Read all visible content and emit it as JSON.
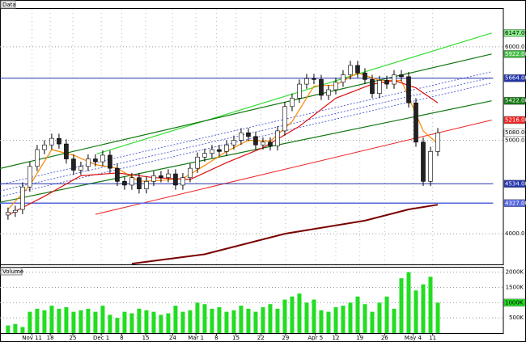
{
  "chart_data": [
    {
      "type": "candlestick",
      "title": "Data",
      "xlim": [
        -1.1,
        68
      ],
      "ylim": [
        3672,
        6405
      ],
      "yticks": [
        {
          "value": 4000,
          "label": "4000.00"
        },
        {
          "value": 5000,
          "label": "5000.00"
        },
        {
          "value": 6000,
          "label": "6000.00"
        }
      ],
      "xticks": [
        {
          "value": 3.3,
          "label": "Nov 11"
        },
        {
          "value": 5.8,
          "label": "18"
        },
        {
          "value": 8.9,
          "label": "25"
        },
        {
          "value": 12.8,
          "label": "Dec 1"
        },
        {
          "value": 15.6,
          "label": "8"
        },
        {
          "value": 18.9,
          "label": "15"
        },
        {
          "value": 22.6,
          "label": "24"
        },
        {
          "value": 25.8,
          "label": "Mar 1"
        },
        {
          "value": 28.6,
          "label": "8"
        },
        {
          "value": 31.3,
          "label": "15"
        },
        {
          "value": 34.7,
          "label": "22"
        },
        {
          "value": 38.1,
          "label": "29"
        },
        {
          "value": 42.2,
          "label": "Apr 5"
        },
        {
          "value": 45,
          "label": "12"
        },
        {
          "value": 48.3,
          "label": "19"
        },
        {
          "value": 51.7,
          "label": "26"
        },
        {
          "value": 55.6,
          "label": "May 4"
        },
        {
          "value": 58.3,
          "label": "11"
        }
      ],
      "grid": true,
      "up_color": "#ffffff",
      "down_color": "#222222",
      "open": [
        4200,
        4230,
        4260,
        4500,
        4720,
        4900,
        4950,
        5020,
        4960,
        4800,
        4680,
        4720,
        4800,
        4770,
        4840,
        4700,
        4560,
        4520,
        4600,
        4480,
        4560,
        4620,
        4600,
        4640,
        4520,
        4600,
        4700,
        4820,
        4860,
        4900,
        4880,
        4950,
        5000,
        5080,
        5040,
        4950,
        4980,
        4940,
        5100,
        5360,
        5450,
        5600,
        5660,
        5650,
        5480,
        5540,
        5620,
        5700,
        5800,
        5720,
        5650,
        5500,
        5640,
        5600,
        5700,
        5680,
        5400,
        4980,
        4560,
        4880
      ],
      "high": [
        4280,
        4300,
        4550,
        4770,
        4950,
        5000,
        5070,
        5070,
        5010,
        4850,
        4770,
        4850,
        4850,
        4890,
        4890,
        4750,
        4610,
        4650,
        4650,
        4610,
        4670,
        4670,
        4690,
        4690,
        4650,
        4750,
        4870,
        4910,
        4950,
        4950,
        5000,
        5050,
        5130,
        5130,
        5090,
        5030,
        5030,
        5150,
        5410,
        5500,
        5650,
        5710,
        5710,
        5700,
        5590,
        5670,
        5750,
        5850,
        5850,
        5770,
        5700,
        5690,
        5690,
        5750,
        5750,
        5730,
        5450,
        5030,
        4930,
        5130
      ],
      "low": [
        4150,
        4180,
        4210,
        4450,
        4670,
        4850,
        4900,
        4910,
        4750,
        4630,
        4630,
        4670,
        4720,
        4720,
        4650,
        4510,
        4470,
        4470,
        4430,
        4430,
        4510,
        4550,
        4550,
        4470,
        4470,
        4550,
        4650,
        4770,
        4810,
        4830,
        4830,
        4900,
        4950,
        4990,
        4900,
        4900,
        4890,
        4890,
        5050,
        5310,
        5400,
        5550,
        5600,
        5430,
        5430,
        5490,
        5570,
        5650,
        5670,
        5600,
        5450,
        5450,
        5550,
        5550,
        5630,
        5350,
        4930,
        4510,
        4510,
        4830
      ],
      "close": [
        4230,
        4250,
        4500,
        4720,
        4900,
        4950,
        5020,
        4960,
        4800,
        4680,
        4720,
        4800,
        4770,
        4840,
        4700,
        4560,
        4520,
        4600,
        4480,
        4560,
        4620,
        4600,
        4640,
        4520,
        4600,
        4700,
        4820,
        4860,
        4900,
        4880,
        4950,
        5000,
        5080,
        5040,
        4950,
        4980,
        4940,
        5100,
        5360,
        5450,
        5600,
        5660,
        5650,
        5480,
        5540,
        5620,
        5700,
        5800,
        5720,
        5650,
        5500,
        5640,
        5600,
        5700,
        5680,
        5400,
        4980,
        4560,
        4880,
        5080
      ],
      "lines": [
        {
          "color": "#33dd33",
          "width": 1.2,
          "x": [
            12.2,
            66.4
          ],
          "values": [
            4853,
            6147
          ]
        },
        {
          "color": "#117711",
          "width": 1.2,
          "x": [
            -1.1,
            66.4
          ],
          "values": [
            4698,
            5922
          ]
        },
        {
          "color": "#117711",
          "width": 1.2,
          "x": [
            -1.1,
            66.4
          ],
          "values": [
            4336,
            5422
          ]
        },
        {
          "color": "#ee2222",
          "width": 1,
          "x": [
            12,
            66.4
          ],
          "values": [
            4207,
            5216
          ]
        },
        {
          "color": "#3344cc",
          "width": 0.8,
          "dash": "2 2",
          "x": [
            -1.1,
            66.4
          ],
          "values": [
            4526,
            5733
          ]
        },
        {
          "color": "#3344cc",
          "width": 0.8,
          "dash": "2 2",
          "x": [
            -1.1,
            66.4
          ],
          "values": [
            4457,
            5672
          ]
        },
        {
          "color": "#3344cc",
          "width": 0.8,
          "dash": "2 2",
          "x": [
            -1.1,
            66.4
          ],
          "values": [
            4397,
            5612
          ]
        },
        {
          "color": "#2233aa",
          "width": 1,
          "x": [
            -1.1,
            66.6
          ],
          "values": [
            5664,
            5664
          ]
        },
        {
          "color": "#2233aa",
          "width": 1,
          "x": [
            -1.1,
            66.6
          ],
          "values": [
            4534,
            4534
          ]
        },
        {
          "color": "#5566dd",
          "width": 1.5,
          "x": [
            -1.1,
            66.6
          ],
          "values": [
            4327,
            4327
          ]
        },
        {
          "color": "#ff8800",
          "width": 1.2,
          "x": [
            0,
            3,
            6,
            9,
            12,
            15,
            18,
            21,
            24,
            27,
            30,
            33,
            36,
            39,
            42,
            45,
            48,
            51,
            54,
            57,
            59
          ],
          "values": [
            4260,
            4520,
            4900,
            4840,
            4740,
            4700,
            4560,
            4570,
            4590,
            4730,
            4880,
            5000,
            4990,
            5200,
            5580,
            5590,
            5720,
            5640,
            5640,
            5100,
            4960
          ]
        },
        {
          "color": "#dd1111",
          "width": 1.2,
          "x": [
            0,
            5,
            10,
            15,
            20,
            25,
            30,
            35,
            40,
            45,
            50,
            53,
            56,
            59
          ],
          "values": [
            4200,
            4400,
            4620,
            4650,
            4600,
            4580,
            4760,
            4920,
            5150,
            5450,
            5600,
            5640,
            5560,
            5400
          ]
        },
        {
          "color": "#7a0000",
          "width": 2,
          "x": [
            17,
            27,
            38,
            49,
            55,
            59
          ],
          "values": [
            3680,
            3780,
            4000,
            4140,
            4260,
            4310
          ]
        }
      ],
      "price_labels": [
        {
          "value": 6147,
          "label": "6147.00",
          "color": "#88ee88",
          "text_color": "#000000"
        },
        {
          "value": 5922,
          "label": "5922.00",
          "color": "#44bb44",
          "text_color": "#ffffff"
        },
        {
          "value": 5664,
          "label": "5664.00",
          "color": "#2233aa",
          "text_color": "#ffffff"
        },
        {
          "value": 5422,
          "label": "5422.00",
          "color": "#117711",
          "text_color": "#ffffff"
        },
        {
          "value": 5216,
          "label": "5216.00",
          "color": "#ee2222",
          "text_color": "#ffffff"
        },
        {
          "value": 5080,
          "label": "5080.00",
          "color": "#ffffff",
          "text_color": "#000000"
        },
        {
          "value": 4534,
          "label": "4534.00",
          "color": "#2233aa",
          "text_color": "#ffffff"
        },
        {
          "value": 4327,
          "label": "4327.00",
          "color": "#5566dd",
          "text_color": "#ffffff"
        }
      ]
    },
    {
      "type": "bar",
      "title": "Volume",
      "color": "#22dd22",
      "ylim": [
        0,
        2150
      ],
      "yticks": [
        {
          "value": 500,
          "label": "500K"
        },
        {
          "value": 1000,
          "label": "1000K"
        },
        {
          "value": 1500,
          "label": "1500K"
        },
        {
          "value": 2000,
          "label": "2000K"
        }
      ],
      "values": [
        250,
        300,
        200,
        700,
        800,
        750,
        900,
        800,
        850,
        700,
        750,
        800,
        700,
        900,
        600,
        500,
        700,
        650,
        800,
        750,
        700,
        600,
        650,
        900,
        700,
        750,
        1000,
        950,
        800,
        850,
        700,
        750,
        900,
        800,
        700,
        850,
        950,
        800,
        1100,
        1200,
        1300,
        1000,
        1100,
        750,
        700,
        850,
        900,
        1000,
        1200,
        950,
        700,
        1000,
        1200,
        800,
        1800,
        2000,
        1400,
        1600,
        1850,
        1000
      ],
      "price_labels": [
        {
          "value": 1000,
          "label": "1000K",
          "color": "#22dd22",
          "text_color": "#000000"
        }
      ]
    }
  ]
}
